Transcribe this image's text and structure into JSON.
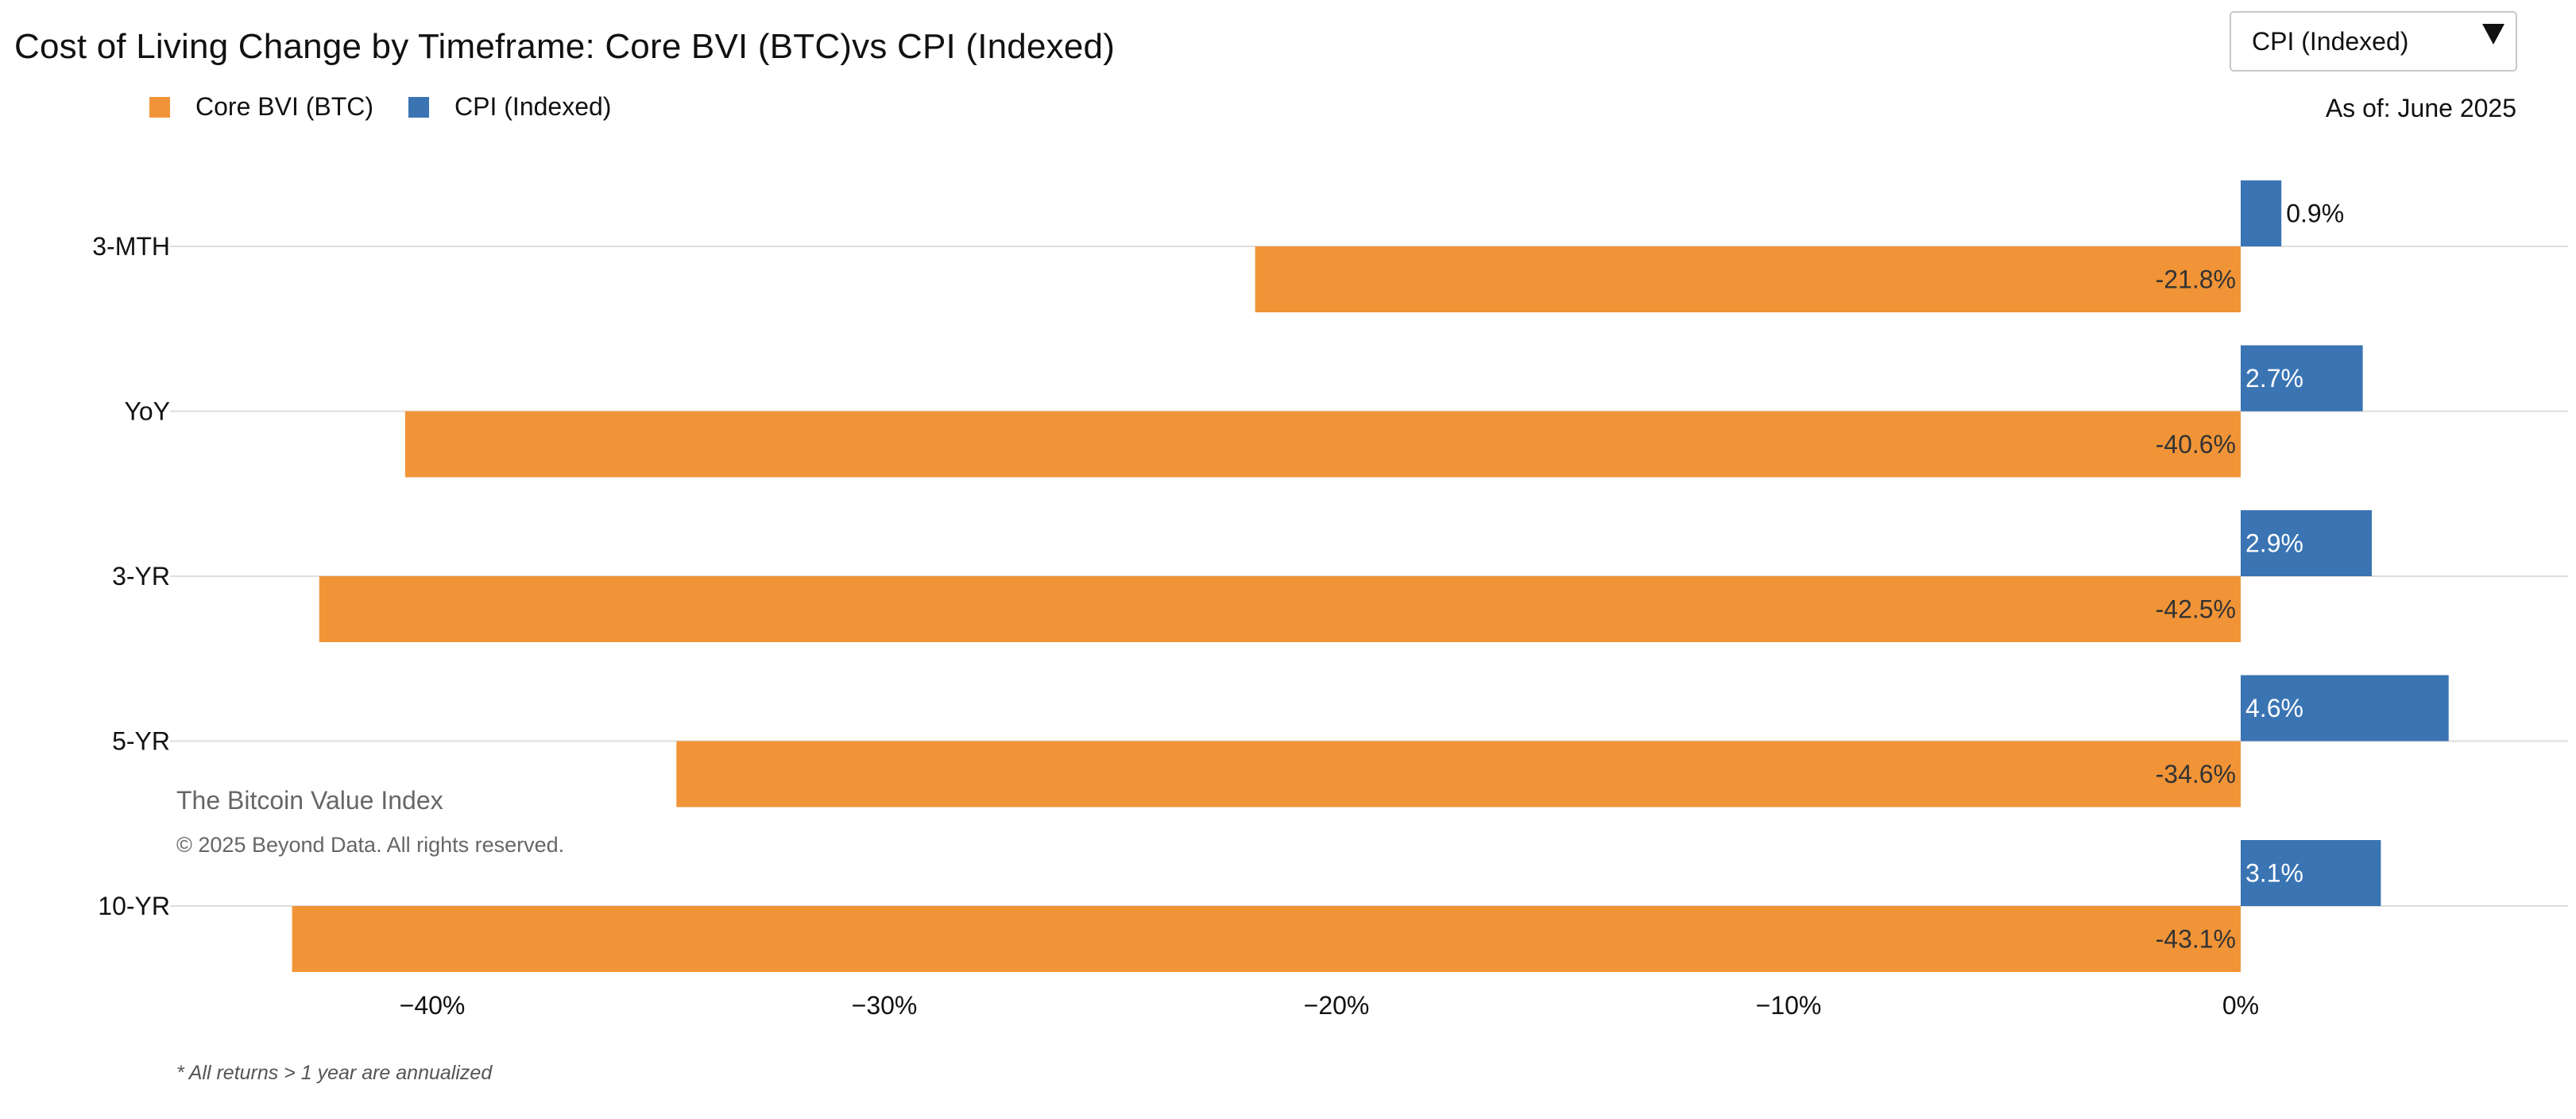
{
  "header": {
    "title": "Cost of Living Change by Timeframe: Core BVI (BTC)vs CPI (Indexed)",
    "as_of": "As of: June 2025"
  },
  "selector": {
    "selected": "CPI (Indexed)",
    "arrow_icon": "triangle-down-icon"
  },
  "legend": {
    "items": [
      {
        "label": "Core BVI (BTC)",
        "color": "#f19437"
      },
      {
        "label": "CPI (Indexed)",
        "color": "#3a74b3"
      }
    ]
  },
  "watermark": {
    "name": "The Bitcoin Value Index",
    "copyright": "© 2025 Beyond Data. All rights reserved."
  },
  "footnote": "* All returns > 1 year are annualized",
  "chart_data": {
    "type": "bar",
    "orientation": "horizontal",
    "categories": [
      "3-MTH",
      "YoY",
      "3-YR",
      "5-YR",
      "10-YR"
    ],
    "series": [
      {
        "name": "CPI (Indexed)",
        "color": "#3a74b3",
        "values": [
          0.9,
          2.7,
          2.9,
          4.6,
          3.1
        ],
        "labels": [
          "0.9%",
          "2.7%",
          "2.9%",
          "4.6%",
          "3.1%"
        ]
      },
      {
        "name": "Core BVI (BTC)",
        "color": "#f19437",
        "values": [
          -21.8,
          -40.6,
          -42.5,
          -34.6,
          -43.1
        ],
        "labels": [
          "-21.8%",
          "-40.6%",
          "-42.5%",
          "-34.6%",
          "-43.1%"
        ]
      }
    ],
    "x_ticks": [
      -40,
      -30,
      -20,
      -10,
      0
    ],
    "x_tick_labels": [
      "−40%",
      "−30%",
      "−20%",
      "−10%",
      "0%"
    ],
    "xlim": [
      -45.2,
      7.3
    ],
    "grid": "horizontal lines at category centers",
    "legend_position": "top-left"
  }
}
